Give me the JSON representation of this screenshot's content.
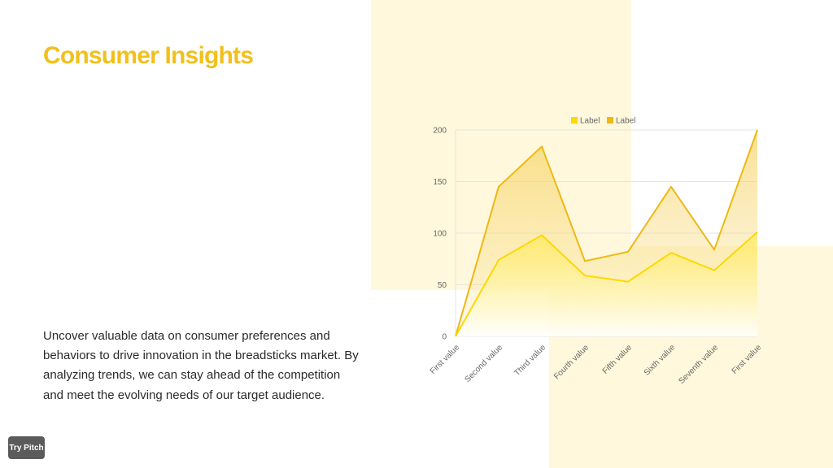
{
  "slide": {
    "title": "Consumer Insights",
    "description": "Uncover valuable data on consumer preferences and behaviors to drive innovation in the breadsticks market. By analyzing trends, we can stay ahead of the competition and meet the evolving needs of our target audience.",
    "try_pitch_label": "Try Pitch"
  },
  "colors": {
    "title": "#f2c01c",
    "series_1": "#fcd804",
    "series_2": "#eeb814",
    "background_accent": "#fff8dc"
  },
  "chart_data": {
    "type": "area",
    "categories": [
      "First value",
      "Second value",
      "Third value",
      "Fourth value",
      "Fifth value",
      "Sixth value",
      "Seventh value",
      "First value"
    ],
    "series": [
      {
        "name": "Label",
        "values": [
          0,
          74,
          98,
          59,
          53,
          81,
          64,
          101
        ]
      },
      {
        "name": "Label",
        "values": [
          0,
          145,
          184,
          73,
          82,
          145,
          84,
          200
        ]
      }
    ],
    "y_ticks": [
      "0",
      "50",
      "100",
      "150",
      "200"
    ],
    "ylim": [
      0,
      200
    ],
    "grid": true,
    "legend": "top-right"
  }
}
